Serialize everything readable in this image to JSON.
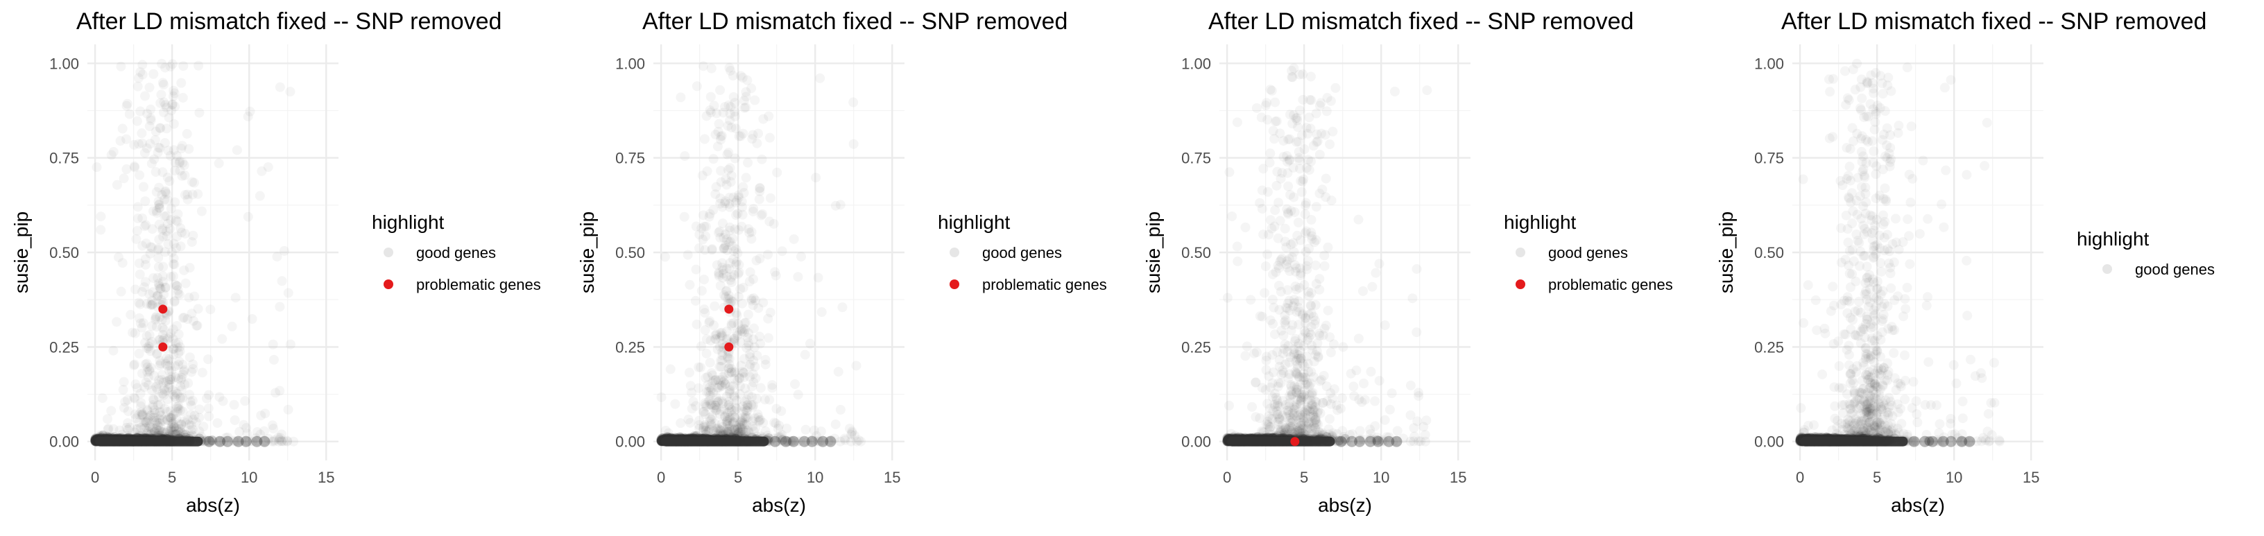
{
  "chart_data": [
    {
      "type": "scatter",
      "title": "After LD mismatch fixed -- SNP removed",
      "xlabel": "abs(z)",
      "ylabel": "susie_pip",
      "xlim": [
        -0.5,
        15.8
      ],
      "ylim": [
        -0.05,
        1.05
      ],
      "x_ticks": [
        0,
        5,
        10,
        15
      ],
      "y_ticks": [
        0.0,
        0.25,
        0.5,
        0.75,
        1.0
      ],
      "y_tick_labels": [
        "0.00",
        "0.25",
        "0.50",
        "0.75",
        "1.00"
      ],
      "grid": true,
      "legend": {
        "title": "highlight",
        "position": "right",
        "entries": [
          {
            "label": "good genes",
            "color": "#333333",
            "alpha": 0.05
          },
          {
            "label": "problematic genes",
            "color": "#e41a1c",
            "alpha": 1
          }
        ]
      },
      "series": [
        {
          "name": "good genes",
          "color": "#333333",
          "alpha": 0.05,
          "description_points": [],
          "density": {
            "x_peak": 4.5,
            "x_max": 11.2
          }
        },
        {
          "name": "problematic genes",
          "color": "#e41a1c",
          "alpha": 1,
          "x": [
            4.4,
            4.4
          ],
          "y": [
            0.35,
            0.25
          ]
        }
      ]
    },
    {
      "type": "scatter",
      "title": "After LD mismatch fixed -- SNP removed",
      "xlabel": "abs(z)",
      "ylabel": "susie_pip",
      "xlim": [
        -0.5,
        15.8
      ],
      "ylim": [
        -0.05,
        1.05
      ],
      "x_ticks": [
        0,
        5,
        10,
        15
      ],
      "y_ticks": [
        0.0,
        0.25,
        0.5,
        0.75,
        1.0
      ],
      "y_tick_labels": [
        "0.00",
        "0.25",
        "0.50",
        "0.75",
        "1.00"
      ],
      "grid": true,
      "legend": {
        "title": "highlight",
        "position": "right",
        "entries": [
          {
            "label": "good genes",
            "color": "#333333",
            "alpha": 0.05
          },
          {
            "label": "problematic genes",
            "color": "#e41a1c",
            "alpha": 1
          }
        ]
      },
      "series": [
        {
          "name": "good genes",
          "color": "#333333",
          "alpha": 0.05,
          "density": {
            "x_peak": 4.5,
            "x_max": 11.2
          }
        },
        {
          "name": "problematic genes",
          "color": "#e41a1c",
          "alpha": 1,
          "x": [
            4.4,
            4.4
          ],
          "y": [
            0.35,
            0.25
          ]
        }
      ]
    },
    {
      "type": "scatter",
      "title": "After LD mismatch fixed -- SNP removed",
      "xlabel": "abs(z)",
      "ylabel": "susie_pip",
      "xlim": [
        -0.5,
        15.8
      ],
      "ylim": [
        -0.05,
        1.05
      ],
      "x_ticks": [
        0,
        5,
        10,
        15
      ],
      "y_ticks": [
        0.0,
        0.25,
        0.5,
        0.75,
        1.0
      ],
      "y_tick_labels": [
        "0.00",
        "0.25",
        "0.50",
        "0.75",
        "1.00"
      ],
      "grid": true,
      "legend": {
        "title": "highlight",
        "position": "right",
        "entries": [
          {
            "label": "good genes",
            "color": "#333333",
            "alpha": 0.05
          },
          {
            "label": "problematic genes",
            "color": "#e41a1c",
            "alpha": 1
          }
        ]
      },
      "series": [
        {
          "name": "good genes",
          "color": "#333333",
          "alpha": 0.05,
          "density": {
            "x_peak": 4.5,
            "x_max": 11.2
          }
        },
        {
          "name": "problematic genes",
          "color": "#e41a1c",
          "alpha": 1,
          "x": [
            4.4
          ],
          "y": [
            0.0
          ]
        }
      ]
    },
    {
      "type": "scatter",
      "title": "After LD mismatch fixed -- SNP removed",
      "xlabel": "abs(z)",
      "ylabel": "susie_pip",
      "xlim": [
        -0.5,
        15.8
      ],
      "ylim": [
        -0.05,
        1.05
      ],
      "x_ticks": [
        0,
        5,
        10,
        15
      ],
      "y_ticks": [
        0.0,
        0.25,
        0.5,
        0.75,
        1.0
      ],
      "y_tick_labels": [
        "0.00",
        "0.25",
        "0.50",
        "0.75",
        "1.00"
      ],
      "grid": true,
      "legend": {
        "title": "highlight",
        "position": "right",
        "entries": [
          {
            "label": "good genes",
            "color": "#333333",
            "alpha": 0.05
          }
        ]
      },
      "series": [
        {
          "name": "good genes",
          "color": "#333333",
          "alpha": 0.05,
          "density": {
            "x_peak": 4.5,
            "x_max": 11.2
          }
        }
      ]
    }
  ]
}
